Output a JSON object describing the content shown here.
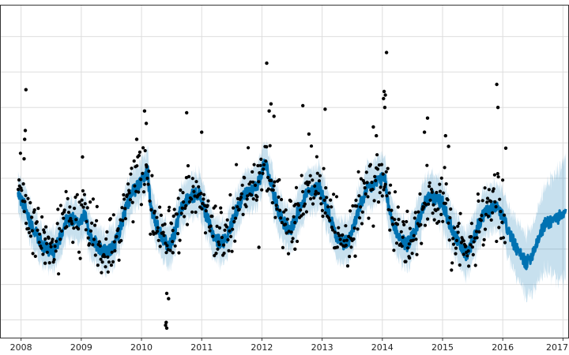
{
  "chart_data": {
    "type": "scatter",
    "title": "",
    "xlabel": "",
    "ylabel": "",
    "x_tick_labels": [
      "2008",
      "2009",
      "2010",
      "2011",
      "2012",
      "2013",
      "2014",
      "2015",
      "2016",
      "2017"
    ],
    "x_tick_values": [
      2008,
      2009,
      2010,
      2011,
      2012,
      2013,
      2014,
      2015,
      2016,
      2017
    ],
    "xlim": [
      2007.65,
      2017.1
    ],
    "ylim": [
      0,
      9.4
    ],
    "y_gridlines": [
      0.5,
      1.5,
      2.5,
      3.5,
      4.5,
      5.5,
      6.5,
      7.5,
      8.5
    ],
    "y_tick_labels_visible": false,
    "grid": true,
    "colors": {
      "observed_points": "#000000",
      "forecast_line": "#0072B2",
      "uncertainty_band": "#0072B2"
    },
    "band_opacity": 0.22,
    "series": [
      {
        "kind": "forecast",
        "points": [
          [
            2007.95,
            4.05
          ],
          [
            2008.05,
            3.75
          ],
          [
            2008.15,
            3.3
          ],
          [
            2008.25,
            2.95
          ],
          [
            2008.35,
            2.65
          ],
          [
            2008.45,
            2.45
          ],
          [
            2008.55,
            2.45
          ],
          [
            2008.65,
            2.85
          ],
          [
            2008.75,
            3.3
          ],
          [
            2008.85,
            3.35
          ],
          [
            2008.95,
            3.2
          ],
          [
            2009.05,
            3.5
          ],
          [
            2009.15,
            2.85
          ],
          [
            2009.25,
            2.65
          ],
          [
            2009.35,
            2.45
          ],
          [
            2009.45,
            2.4
          ],
          [
            2009.55,
            2.6
          ],
          [
            2009.65,
            3.1
          ],
          [
            2009.75,
            3.7
          ],
          [
            2009.85,
            4.1
          ],
          [
            2009.95,
            4.3
          ],
          [
            2010.05,
            4.5
          ],
          [
            2010.1,
            4.8
          ],
          [
            2010.15,
            3.7
          ],
          [
            2010.25,
            3.2
          ],
          [
            2010.35,
            2.85
          ],
          [
            2010.45,
            2.55
          ],
          [
            2010.55,
            2.95
          ],
          [
            2010.65,
            3.6
          ],
          [
            2010.75,
            3.9
          ],
          [
            2010.85,
            4.0
          ],
          [
            2010.95,
            4.1
          ],
          [
            2011.05,
            3.6
          ],
          [
            2011.15,
            3.05
          ],
          [
            2011.25,
            2.75
          ],
          [
            2011.35,
            2.7
          ],
          [
            2011.45,
            2.95
          ],
          [
            2011.55,
            3.5
          ],
          [
            2011.65,
            3.85
          ],
          [
            2011.75,
            4.1
          ],
          [
            2011.85,
            4.2
          ],
          [
            2011.95,
            4.4
          ],
          [
            2012.05,
            5.0
          ],
          [
            2012.15,
            4.4
          ],
          [
            2012.25,
            3.7
          ],
          [
            2012.35,
            3.3
          ],
          [
            2012.45,
            3.0
          ],
          [
            2012.55,
            3.3
          ],
          [
            2012.65,
            3.8
          ],
          [
            2012.75,
            4.1
          ],
          [
            2012.85,
            4.1
          ],
          [
            2012.95,
            4.3
          ],
          [
            2013.05,
            3.8
          ],
          [
            2013.15,
            3.3
          ],
          [
            2013.25,
            2.85
          ],
          [
            2013.35,
            2.65
          ],
          [
            2013.45,
            2.75
          ],
          [
            2013.55,
            3.3
          ],
          [
            2013.65,
            3.8
          ],
          [
            2013.75,
            4.2
          ],
          [
            2013.85,
            4.3
          ],
          [
            2013.95,
            4.5
          ],
          [
            2014.05,
            4.4
          ],
          [
            2014.1,
            3.7
          ],
          [
            2014.2,
            3.1
          ],
          [
            2014.3,
            2.8
          ],
          [
            2014.4,
            2.6
          ],
          [
            2014.5,
            2.85
          ],
          [
            2014.6,
            3.3
          ],
          [
            2014.7,
            3.8
          ],
          [
            2014.8,
            4.0
          ],
          [
            2014.9,
            3.9
          ],
          [
            2015.0,
            3.8
          ],
          [
            2015.1,
            3.3
          ],
          [
            2015.2,
            2.9
          ],
          [
            2015.3,
            2.55
          ],
          [
            2015.4,
            2.35
          ],
          [
            2015.5,
            2.7
          ],
          [
            2015.6,
            3.2
          ],
          [
            2015.7,
            3.5
          ],
          [
            2015.8,
            3.6
          ],
          [
            2015.9,
            3.7
          ],
          [
            2016.0,
            3.4
          ],
          [
            2016.1,
            3.0
          ],
          [
            2016.2,
            2.6
          ],
          [
            2016.3,
            2.3
          ],
          [
            2016.4,
            2.1
          ],
          [
            2016.5,
            2.4
          ],
          [
            2016.6,
            2.85
          ],
          [
            2016.7,
            3.2
          ],
          [
            2016.8,
            3.3
          ],
          [
            2016.9,
            3.4
          ],
          [
            2017.0,
            3.4
          ],
          [
            2017.05,
            3.6
          ]
        ],
        "upper_offset": [
          [
            2007.95,
            0.55
          ],
          [
            2015.9,
            0.65
          ],
          [
            2016.1,
            0.7
          ],
          [
            2016.4,
            0.8
          ],
          [
            2016.7,
            1.0
          ],
          [
            2016.9,
            1.3
          ],
          [
            2017.05,
            1.6
          ]
        ],
        "lower_offset": [
          [
            2007.95,
            0.55
          ],
          [
            2015.9,
            0.65
          ],
          [
            2016.1,
            0.75
          ],
          [
            2016.4,
            0.95
          ],
          [
            2016.7,
            1.3
          ],
          [
            2016.9,
            1.7
          ],
          [
            2017.05,
            1.9
          ]
        ]
      },
      {
        "kind": "observed",
        "generator": {
          "x_start": 2007.95,
          "x_end": 2016.05,
          "step": 0.0125,
          "scatter_sd": 0.45,
          "seed": 7
        },
        "extra_points": [
          [
            2008.08,
            7.0
          ],
          [
            2008.07,
            5.85
          ],
          [
            2008.06,
            5.6
          ],
          [
            2008.05,
            5.05
          ],
          [
            2009.02,
            5.1
          ],
          [
            2009.92,
            5.6
          ],
          [
            2010.05,
            6.4
          ],
          [
            2010.08,
            6.05
          ],
          [
            2010.4,
            0.35
          ],
          [
            2010.42,
            0.27
          ],
          [
            2010.41,
            0.43
          ],
          [
            2010.45,
            1.1
          ],
          [
            2010.42,
            1.25
          ],
          [
            2010.75,
            6.35
          ],
          [
            2011.0,
            5.8
          ],
          [
            2011.95,
            2.55
          ],
          [
            2012.08,
            7.75
          ],
          [
            2012.15,
            6.6
          ],
          [
            2012.12,
            6.4
          ],
          [
            2012.2,
            6.25
          ],
          [
            2012.68,
            6.55
          ],
          [
            2012.78,
            5.75
          ],
          [
            2013.05,
            6.45
          ],
          [
            2013.85,
            5.95
          ],
          [
            2013.9,
            5.7
          ],
          [
            2014.03,
            6.95
          ],
          [
            2014.05,
            6.85
          ],
          [
            2014.07,
            8.05
          ],
          [
            2014.02,
            6.75
          ],
          [
            2014.04,
            6.5
          ],
          [
            2014.75,
            6.2
          ],
          [
            2014.7,
            5.8
          ],
          [
            2015.05,
            5.7
          ],
          [
            2015.1,
            5.4
          ],
          [
            2015.9,
            7.15
          ],
          [
            2015.92,
            6.5
          ],
          [
            2016.05,
            5.35
          ],
          [
            2015.35,
            2.35
          ],
          [
            2014.45,
            2.25
          ],
          [
            2013.55,
            2.3
          ],
          [
            2012.55,
            2.5
          ],
          [
            2008.4,
            2.1
          ],
          [
            2010.52,
            2.4
          ]
        ]
      }
    ]
  }
}
